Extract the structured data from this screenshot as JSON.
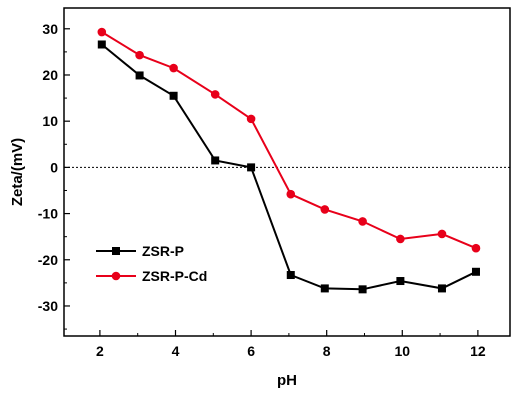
{
  "chart_data": {
    "type": "line",
    "title": "",
    "xlabel": "pH",
    "ylabel": "Zeta/(mV)",
    "xlim": [
      1.05,
      12.85
    ],
    "ylim": [
      -36.5,
      34.5
    ],
    "x_ticks": [
      "2",
      "4",
      "6",
      "8",
      "10",
      "12"
    ],
    "y_ticks": [
      "30",
      "20",
      "10",
      "0",
      "-10",
      "-20",
      "-30"
    ],
    "x_tick_values": [
      2,
      4,
      6,
      8,
      10,
      12
    ],
    "y_tick_values": [
      30,
      20,
      10,
      0,
      -10,
      -20,
      -30
    ],
    "x_minor_ticks": [
      3,
      5,
      7,
      9,
      11
    ],
    "y_minor_ticks": [
      25,
      15,
      5,
      -5,
      -15,
      -25,
      -35
    ],
    "zero_line": "dotted",
    "grid": false,
    "legend_position": "lower-left",
    "series": [
      {
        "name": "ZSR-P",
        "color": "#000000",
        "marker": "square",
        "x": [
          2.05,
          3.05,
          3.95,
          5.05,
          6.0,
          7.05,
          7.95,
          8.95,
          9.95,
          11.05,
          11.95
        ],
        "y": [
          26.6,
          19.9,
          15.5,
          1.5,
          0.0,
          -23.3,
          -26.2,
          -26.4,
          -24.6,
          -26.2,
          -22.6
        ]
      },
      {
        "name": "ZSR-P-Cd",
        "color": "#e8001a",
        "marker": "circle",
        "x": [
          2.05,
          3.05,
          3.95,
          5.05,
          6.0,
          7.05,
          7.95,
          8.95,
          9.95,
          11.05,
          11.95
        ],
        "y": [
          29.3,
          24.3,
          21.5,
          15.8,
          10.5,
          -5.8,
          -9.1,
          -11.7,
          -15.5,
          -14.4,
          -17.5
        ]
      }
    ]
  }
}
